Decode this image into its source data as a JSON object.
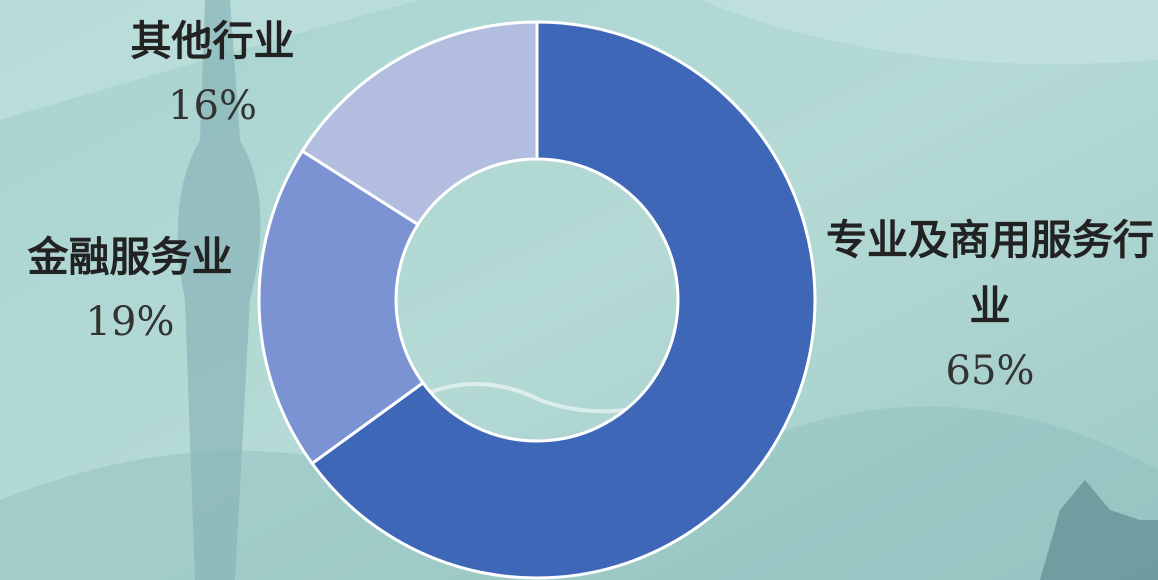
{
  "chart_data": {
    "type": "pie",
    "categories": [
      "专业及商用服务行业",
      "金融服务业",
      "其他行业"
    ],
    "values": [
      65,
      19,
      16
    ],
    "value_labels": [
      "65%",
      "19%",
      "16%"
    ],
    "colors": [
      "#3f67b8",
      "#7b93d2",
      "#b2bde0"
    ],
    "donut": true
  }
}
